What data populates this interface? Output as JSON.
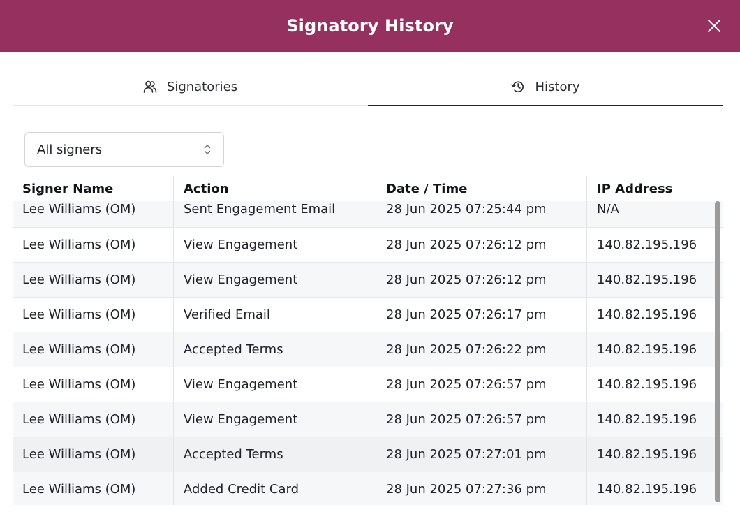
{
  "header": {
    "title": "Signatory History",
    "bg_color": "#96305f"
  },
  "tabs": [
    {
      "label": "Signatories",
      "icon": "users-icon",
      "active": false
    },
    {
      "label": "History",
      "icon": "history-icon",
      "active": true
    }
  ],
  "filter": {
    "selected": "All signers"
  },
  "table": {
    "columns": [
      "Signer Name",
      "Action",
      "Date / Time",
      "IP Address"
    ],
    "rows": [
      [
        "Lee Williams (OM)",
        "Sent Engagement Email",
        "28 Jun 2025 07:25:44 pm",
        "N/A"
      ],
      [
        "Lee Williams (OM)",
        "View Engagement",
        "28 Jun 2025 07:26:12 pm",
        "140.82.195.196"
      ],
      [
        "Lee Williams (OM)",
        "View Engagement",
        "28 Jun 2025 07:26:12 pm",
        "140.82.195.196"
      ],
      [
        "Lee Williams (OM)",
        "Verified Email",
        "28 Jun 2025 07:26:17 pm",
        "140.82.195.196"
      ],
      [
        "Lee Williams (OM)",
        "Accepted Terms",
        "28 Jun 2025 07:26:22 pm",
        "140.82.195.196"
      ],
      [
        "Lee Williams (OM)",
        "View Engagement",
        "28 Jun 2025 07:26:57 pm",
        "140.82.195.196"
      ],
      [
        "Lee Williams (OM)",
        "View Engagement",
        "28 Jun 2025 07:26:57 pm",
        "140.82.195.196"
      ],
      [
        "Lee Williams (OM)",
        "Accepted Terms",
        "28 Jun 2025 07:27:01 pm",
        "140.82.195.196"
      ],
      [
        "Lee Williams (OM)",
        "Added Credit Card",
        "28 Jun 2025 07:27:36 pm",
        "140.82.195.196"
      ]
    ]
  }
}
